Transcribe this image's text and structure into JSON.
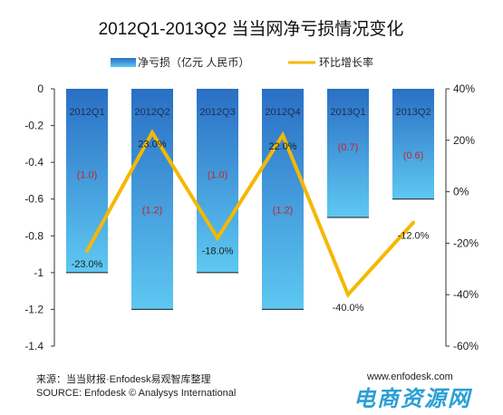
{
  "chart_data": {
    "type": "bar",
    "title": "2012Q1-2013Q2 当当网净亏损情况变化",
    "categories": [
      "2012Q1",
      "2012Q2",
      "2012Q3",
      "2012Q4",
      "2013Q1",
      "2013Q2"
    ],
    "series": [
      {
        "name": "净亏损（亿元 人民币）",
        "type": "bar",
        "axis": "left",
        "values": [
          -1.0,
          -1.2,
          -1.0,
          -1.2,
          -0.7,
          -0.6
        ],
        "data_labels": [
          "(1.0)",
          "(1.2)",
          "(1.0)",
          "(1.2)",
          "(0.7)",
          "(0.6)"
        ]
      },
      {
        "name": "环比增长率",
        "type": "line",
        "axis": "right",
        "values": [
          -23.0,
          23.0,
          -18.0,
          22.0,
          -40.0,
          -12.0
        ],
        "data_labels": [
          "-23.0%",
          "23.0%",
          "-18.0%",
          "22.0%",
          "-40.0%",
          "-12.0%"
        ]
      }
    ],
    "ylim_left": [
      -1.4,
      0
    ],
    "yticks_left": [
      "0",
      "-0.2",
      "-0.4",
      "-0.6",
      "-0.8",
      "-1",
      "-1.2",
      "-1.4"
    ],
    "ylim_right": [
      -60,
      40
    ],
    "yticks_right": [
      "40%",
      "20%",
      "0%",
      "-20%",
      "-40%",
      "-60%"
    ],
    "grid": false,
    "legend_position": "top",
    "colors": {
      "bar_top": "#2a6fc4",
      "bar_bottom": "#5ec8f2",
      "line": "#f5b800",
      "bar_label": "#c0272d"
    }
  },
  "footer": {
    "source_cn": "来源：当当财报·Enfodesk易观智库整理",
    "source_en": "SOURCE: Enfodesk © Analysys International",
    "site": "www.enfodesk.com",
    "watermark": "电商资源网"
  }
}
